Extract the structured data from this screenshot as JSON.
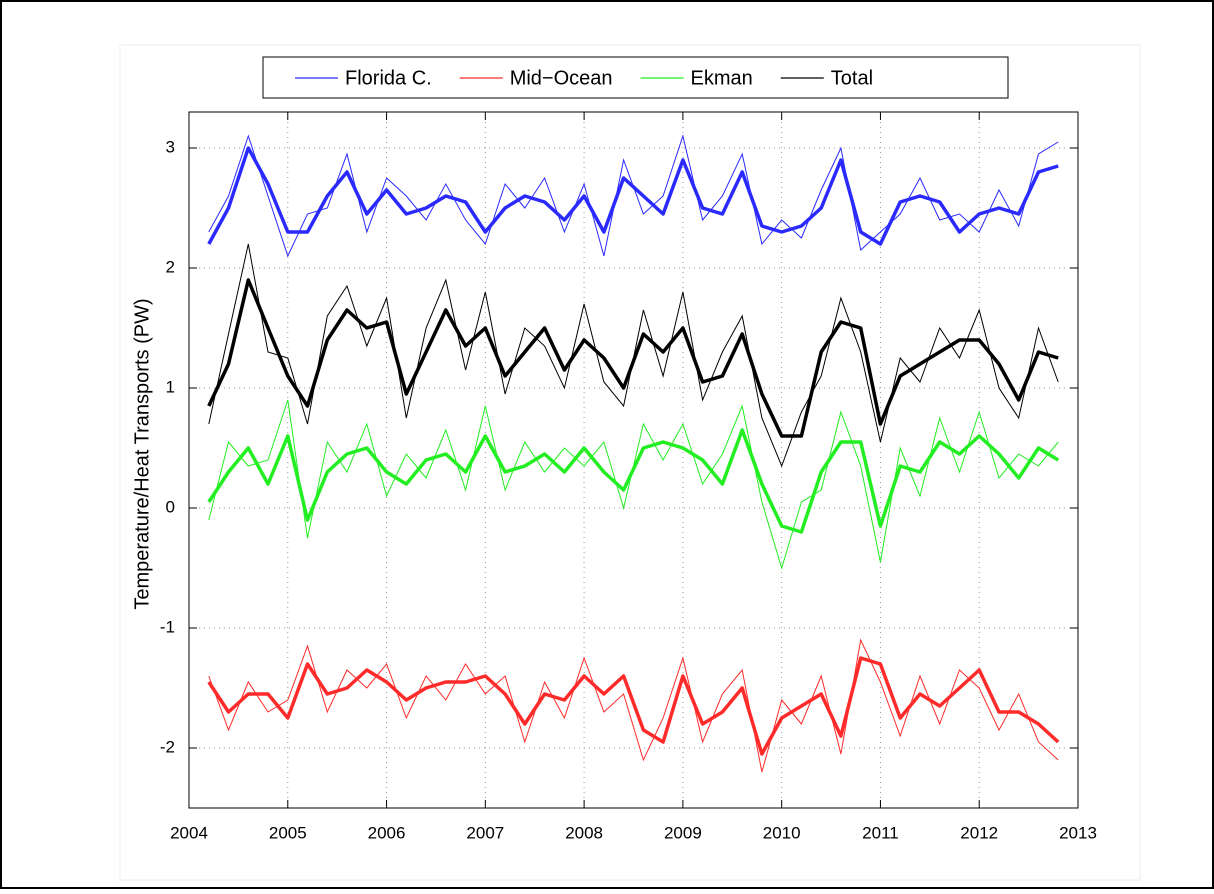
{
  "chart_data": {
    "type": "line",
    "ylabel": "Temperature/Heat Transports (PW)",
    "x": [
      2004.2,
      2004.4,
      2004.6,
      2004.8,
      2005,
      2005.2,
      2005.4,
      2005.6,
      2005.8,
      2006,
      2006.2,
      2006.4,
      2006.6,
      2006.8,
      2007,
      2007.2,
      2007.4,
      2007.6,
      2007.8,
      2008,
      2008.2,
      2008.4,
      2008.6,
      2008.8,
      2009,
      2009.2,
      2009.4,
      2009.6,
      2009.8,
      2010,
      2010.2,
      2010.4,
      2010.6,
      2010.8,
      2011,
      2011.2,
      2011.4,
      2011.6,
      2011.8,
      2012,
      2012.2,
      2012.4,
      2012.6,
      2012.8
    ],
    "series": [
      {
        "name": "Florida C.",
        "color": "#2a2aff",
        "values": [
          2.3,
          2.6,
          3.1,
          2.6,
          2.1,
          2.45,
          2.5,
          2.95,
          2.3,
          2.75,
          2.6,
          2.4,
          2.7,
          2.4,
          2.2,
          2.7,
          2.5,
          2.75,
          2.3,
          2.7,
          2.1,
          2.9,
          2.45,
          2.6,
          3.1,
          2.4,
          2.6,
          2.95,
          2.2,
          2.4,
          2.25,
          2.65,
          3.0,
          2.15,
          2.3,
          2.45,
          2.75,
          2.4,
          2.45,
          2.3,
          2.65,
          2.35,
          2.95,
          3.05
        ],
        "smoothed": [
          2.2,
          2.5,
          3.0,
          2.7,
          2.3,
          2.3,
          2.6,
          2.8,
          2.45,
          2.65,
          2.45,
          2.5,
          2.6,
          2.55,
          2.3,
          2.5,
          2.6,
          2.55,
          2.4,
          2.6,
          2.3,
          2.75,
          2.6,
          2.45,
          2.9,
          2.5,
          2.45,
          2.8,
          2.35,
          2.3,
          2.35,
          2.5,
          2.9,
          2.3,
          2.2,
          2.55,
          2.6,
          2.55,
          2.3,
          2.45,
          2.5,
          2.45,
          2.8,
          2.85
        ]
      },
      {
        "name": "Mid−Ocean",
        "color": "#ff2a2a",
        "values": [
          -1.4,
          -1.85,
          -1.45,
          -1.7,
          -1.6,
          -1.15,
          -1.7,
          -1.35,
          -1.5,
          -1.3,
          -1.75,
          -1.4,
          -1.6,
          -1.3,
          -1.55,
          -1.4,
          -1.95,
          -1.45,
          -1.75,
          -1.25,
          -1.7,
          -1.55,
          -2.1,
          -1.75,
          -1.25,
          -1.95,
          -1.55,
          -1.35,
          -2.2,
          -1.6,
          -1.8,
          -1.4,
          -2.05,
          -1.1,
          -1.45,
          -1.9,
          -1.4,
          -1.8,
          -1.35,
          -1.5,
          -1.85,
          -1.55,
          -1.95,
          -2.1
        ],
        "smoothed": [
          -1.45,
          -1.7,
          -1.55,
          -1.55,
          -1.75,
          -1.3,
          -1.55,
          -1.5,
          -1.35,
          -1.45,
          -1.6,
          -1.5,
          -1.45,
          -1.45,
          -1.4,
          -1.55,
          -1.8,
          -1.55,
          -1.6,
          -1.4,
          -1.55,
          -1.4,
          -1.85,
          -1.95,
          -1.4,
          -1.8,
          -1.7,
          -1.5,
          -2.05,
          -1.75,
          -1.65,
          -1.55,
          -1.9,
          -1.25,
          -1.3,
          -1.75,
          -1.55,
          -1.65,
          -1.5,
          -1.35,
          -1.7,
          -1.7,
          -1.8,
          -1.95
        ]
      },
      {
        "name": "Ekman",
        "color": "#22ee22",
        "values": [
          -0.1,
          0.55,
          0.35,
          0.4,
          0.9,
          -0.25,
          0.55,
          0.3,
          0.7,
          0.1,
          0.45,
          0.25,
          0.65,
          0.15,
          0.85,
          0.15,
          0.55,
          0.3,
          0.5,
          0.35,
          0.55,
          0.0,
          0.7,
          0.4,
          0.7,
          0.2,
          0.45,
          0.85,
          0.05,
          -0.5,
          0.05,
          0.15,
          0.8,
          0.35,
          -0.45,
          0.5,
          0.1,
          0.75,
          0.3,
          0.8,
          0.25,
          0.45,
          0.35,
          0.55
        ],
        "smoothed": [
          0.05,
          0.3,
          0.5,
          0.2,
          0.6,
          -0.1,
          0.3,
          0.45,
          0.5,
          0.3,
          0.2,
          0.4,
          0.45,
          0.3,
          0.6,
          0.3,
          0.35,
          0.45,
          0.3,
          0.5,
          0.3,
          0.15,
          0.5,
          0.55,
          0.5,
          0.4,
          0.2,
          0.65,
          0.2,
          -0.15,
          -0.2,
          0.3,
          0.55,
          0.55,
          -0.15,
          0.35,
          0.3,
          0.55,
          0.45,
          0.6,
          0.45,
          0.25,
          0.5,
          0.4
        ]
      },
      {
        "name": "Total",
        "color": "#000000",
        "values": [
          0.7,
          1.45,
          2.2,
          1.3,
          1.25,
          0.7,
          1.6,
          1.85,
          1.35,
          1.75,
          0.75,
          1.5,
          1.9,
          1.15,
          1.8,
          0.95,
          1.5,
          1.35,
          1.0,
          1.7,
          1.05,
          0.85,
          1.65,
          1.1,
          1.8,
          0.9,
          1.3,
          1.6,
          0.75,
          0.35,
          0.8,
          1.1,
          1.75,
          1.3,
          0.55,
          1.25,
          1.05,
          1.5,
          1.25,
          1.65,
          1.0,
          0.75,
          1.5,
          1.05
        ],
        "smoothed": [
          0.85,
          1.2,
          1.9,
          1.5,
          1.1,
          0.85,
          1.4,
          1.65,
          1.5,
          1.55,
          0.95,
          1.3,
          1.65,
          1.35,
          1.5,
          1.1,
          1.3,
          1.5,
          1.15,
          1.4,
          1.25,
          1.0,
          1.45,
          1.3,
          1.5,
          1.05,
          1.1,
          1.45,
          0.95,
          0.6,
          0.6,
          1.3,
          1.55,
          1.5,
          0.7,
          1.1,
          1.2,
          1.3,
          1.4,
          1.4,
          1.2,
          0.9,
          1.3,
          1.25
        ]
      }
    ],
    "xlim": [
      2004,
      2013
    ],
    "xticks": [
      2004,
      2005,
      2006,
      2007,
      2008,
      2009,
      2010,
      2011,
      2012,
      2013
    ],
    "ylim": [
      -2.5,
      3.3
    ],
    "yticks": [
      -2,
      -1,
      0,
      1,
      2,
      3
    ],
    "grid": true
  }
}
